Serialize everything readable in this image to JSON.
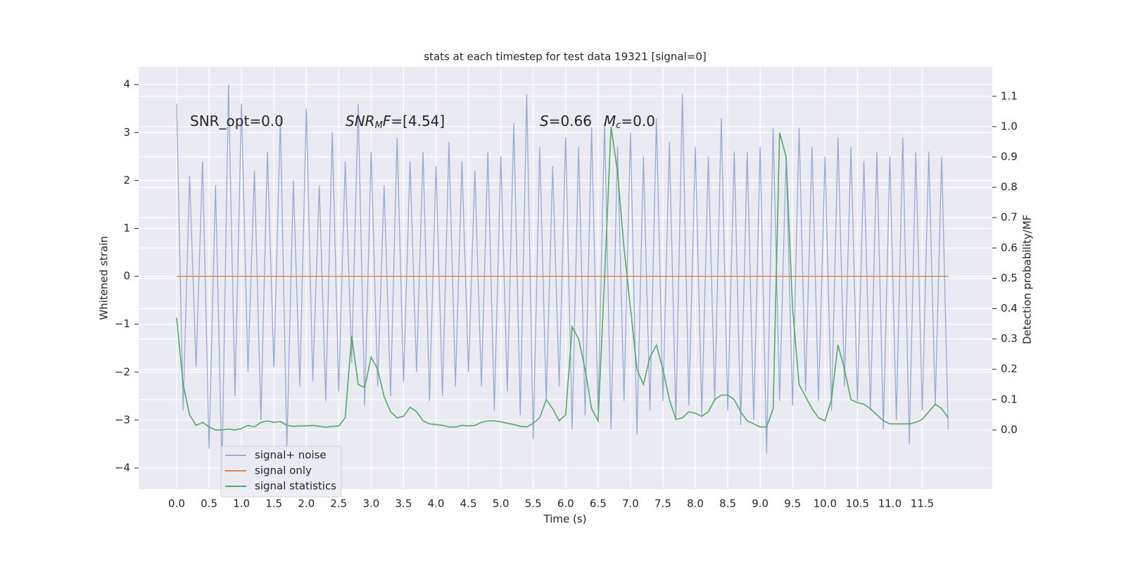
{
  "chart_data": {
    "type": "line",
    "title": "stats at each timestep for test data 19321 [signal=0]",
    "xlabel": "Time (s)",
    "ylabel": "Whitened strain",
    "y2label": "Detection probability/MF",
    "annotations": [
      [
        "SNR_opt=0.0"
      ],
      [
        "SNR",
        "M",
        "F",
        "=[4.54]"
      ],
      [
        "S",
        "=0.66"
      ],
      [
        "M",
        "c",
        "=0.0"
      ]
    ],
    "grid": true,
    "legend": "lower left",
    "xlim": [
      -0.586,
      12.58
    ],
    "ylim": [
      -4.44,
      4.37
    ],
    "y2lim": [
      -0.195,
      1.197
    ],
    "xticks": [
      {
        "value": 0,
        "label": "0.0"
      },
      0.5,
      {
        "value": 1,
        "label": "1.0"
      },
      1.5,
      {
        "value": 2,
        "label": "2.0"
      },
      2.5,
      {
        "value": 3,
        "label": "3.0"
      },
      3.5,
      {
        "value": 4,
        "label": "4.0"
      },
      4.5,
      {
        "value": 5,
        "label": "5.0"
      },
      5.5,
      {
        "value": 6,
        "label": "6.0"
      },
      6.5,
      {
        "value": 7,
        "label": "7.0"
      },
      7.5,
      {
        "value": 8,
        "label": "8.0"
      },
      8.5,
      {
        "value": 9,
        "label": "9.0"
      },
      9.5,
      {
        "value": 10,
        "label": "10.0"
      },
      10.5,
      {
        "value": 11,
        "label": "11.0"
      },
      11.5
    ],
    "yticks": [
      {
        "value": -4,
        "label": "−4"
      },
      {
        "value": -3,
        "label": "−3"
      },
      {
        "value": -2,
        "label": "−2"
      },
      {
        "value": -1,
        "label": "−1"
      },
      0,
      1,
      2,
      3,
      4
    ],
    "y2ticks": [
      {
        "value": 0,
        "label": "0.0"
      },
      0.1,
      0.2,
      0.3,
      0.4,
      0.5,
      0.6,
      0.7,
      0.8,
      0.9,
      {
        "value": 1,
        "label": "1.0"
      },
      1.1
    ],
    "x": [
      0,
      0.1,
      0.2,
      0.3,
      0.4,
      0.5,
      0.6,
      0.7,
      0.8,
      0.9,
      1,
      1.1,
      1.2,
      1.3,
      1.4,
      1.5,
      1.6,
      1.7,
      1.8,
      1.9,
      2,
      2.1,
      2.2,
      2.3,
      2.4,
      2.5,
      2.6,
      2.7,
      2.8,
      2.9,
      3,
      3.1,
      3.2,
      3.3,
      3.4,
      3.5,
      3.6,
      3.7,
      3.8,
      3.9,
      4,
      4.1,
      4.2,
      4.3,
      4.4,
      4.5,
      4.6,
      4.7,
      4.8,
      4.9,
      5,
      5.1,
      5.2,
      5.3,
      5.4,
      5.5,
      5.6,
      5.7,
      5.8,
      5.9,
      6,
      6.1,
      6.2,
      6.3,
      6.4,
      6.5,
      6.6,
      6.7,
      6.8,
      6.9,
      7,
      7.1,
      7.2,
      7.3,
      7.4,
      7.5,
      7.6,
      7.7,
      7.8,
      7.9,
      8,
      8.1,
      8.2,
      8.3,
      8.4,
      8.5,
      8.6,
      8.7,
      8.8,
      8.9,
      9,
      9.1,
      9.2,
      9.3,
      9.4,
      9.5,
      9.6,
      9.7,
      9.8,
      9.9,
      10,
      10.1,
      10.2,
      10.3,
      10.4,
      10.5,
      10.6,
      10.7,
      10.8,
      10.9,
      11,
      11.1,
      11.2,
      11.3,
      11.4,
      11.5,
      11.6,
      11.7,
      11.8,
      11.9
    ],
    "series": [
      {
        "name": "signal+ noise",
        "color": "#99aad0",
        "values": [
          3.6,
          -2.8,
          2.1,
          -1.9,
          2.4,
          -3.6,
          1.9,
          -4.1,
          4.0,
          -2.5,
          3.6,
          -2.0,
          2.2,
          -3.0,
          2.6,
          -1.9,
          3.3,
          -3.6,
          2.0,
          -2.3,
          3.5,
          -2.2,
          1.9,
          -2.6,
          3.0,
          -2.4,
          2.4,
          -1.8,
          3.6,
          -2.7,
          2.6,
          -2.3,
          1.9,
          -2.5,
          2.9,
          -2.2,
          2.4,
          -2.0,
          2.6,
          -2.6,
          2.3,
          -2.5,
          2.8,
          -2.3,
          2.4,
          -2.0,
          2.2,
          -2.3,
          2.6,
          -2.8,
          2.5,
          -2.4,
          3.2,
          -2.9,
          3.8,
          -3.4,
          2.7,
          -2.6,
          2.3,
          -2.3,
          2.9,
          -3.2,
          2.7,
          -2.9,
          3.1,
          -2.8,
          3.2,
          -3.2,
          2.7,
          -2.6,
          3.0,
          -3.3,
          2.5,
          -2.8,
          3.3,
          -2.6,
          2.8,
          -3.0,
          3.8,
          -2.7,
          2.7,
          -2.9,
          2.5,
          -2.6,
          3.3,
          -2.8,
          2.6,
          -3.1,
          2.6,
          -3.0,
          2.7,
          -3.7,
          3.1,
          -2.6,
          2.5,
          -2.7,
          3.1,
          -2.4,
          2.7,
          -2.6,
          2.5,
          -2.8,
          2.9,
          -2.3,
          2.7,
          -2.6,
          2.4,
          -2.8,
          2.6,
          -3.2,
          2.5,
          -3.0,
          2.9,
          -3.5,
          2.6,
          -2.8,
          2.6,
          -2.7,
          2.5,
          -3.2
        ]
      },
      {
        "name": "signal only",
        "color": "#dd8452",
        "values": [
          0,
          0,
          0,
          0,
          0,
          0,
          0,
          0,
          0,
          0,
          0,
          0,
          0,
          0,
          0,
          0,
          0,
          0,
          0,
          0,
          0,
          0,
          0,
          0,
          0,
          0,
          0,
          0,
          0,
          0,
          0,
          0,
          0,
          0,
          0,
          0,
          0,
          0,
          0,
          0,
          0,
          0,
          0,
          0,
          0,
          0,
          0,
          0,
          0,
          0,
          0,
          0,
          0,
          0,
          0,
          0,
          0,
          0,
          0,
          0,
          0,
          0,
          0,
          0,
          0,
          0,
          0,
          0,
          0,
          0,
          0,
          0,
          0,
          0,
          0,
          0,
          0,
          0,
          0,
          0,
          0,
          0,
          0,
          0,
          0,
          0,
          0,
          0,
          0,
          0,
          0,
          0,
          0,
          0,
          0,
          0,
          0,
          0,
          0,
          0,
          0,
          0,
          0,
          0,
          0,
          0,
          0,
          0,
          0,
          0,
          0,
          0,
          0,
          0,
          0,
          0,
          0,
          0,
          0,
          0
        ]
      },
      {
        "name": "signal statistics",
        "color": "#55a868",
        "axis": "y2",
        "values": [
          0.37,
          0.15,
          0.05,
          0.015,
          0.025,
          0.01,
          0.0,
          0.0,
          0.003,
          0.0,
          0.005,
          0.015,
          0.01,
          0.025,
          0.03,
          0.025,
          0.028,
          0.015,
          0.012,
          0.013,
          0.013,
          0.015,
          0.012,
          0.009,
          0.012,
          0.013,
          0.04,
          0.31,
          0.15,
          0.14,
          0.24,
          0.2,
          0.11,
          0.06,
          0.04,
          0.045,
          0.075,
          0.06,
          0.03,
          0.02,
          0.018,
          0.015,
          0.01,
          0.01,
          0.015,
          0.013,
          0.015,
          0.025,
          0.03,
          0.03,
          0.027,
          0.022,
          0.018,
          0.012,
          0.01,
          0.022,
          0.04,
          0.1,
          0.07,
          0.03,
          0.05,
          0.34,
          0.3,
          0.2,
          0.07,
          0.03,
          0.5,
          1.0,
          0.85,
          0.6,
          0.4,
          0.2,
          0.15,
          0.24,
          0.28,
          0.2,
          0.1,
          0.035,
          0.04,
          0.06,
          0.055,
          0.045,
          0.06,
          0.1,
          0.115,
          0.115,
          0.1,
          0.06,
          0.03,
          0.02,
          0.01,
          0.01,
          0.07,
          0.98,
          0.9,
          0.4,
          0.15,
          0.11,
          0.07,
          0.04,
          0.03,
          0.1,
          0.28,
          0.2,
          0.1,
          0.09,
          0.085,
          0.07,
          0.05,
          0.03,
          0.02,
          0.02,
          0.02,
          0.02,
          0.025,
          0.035,
          0.06,
          0.085,
          0.07,
          0.04
        ]
      }
    ]
  }
}
